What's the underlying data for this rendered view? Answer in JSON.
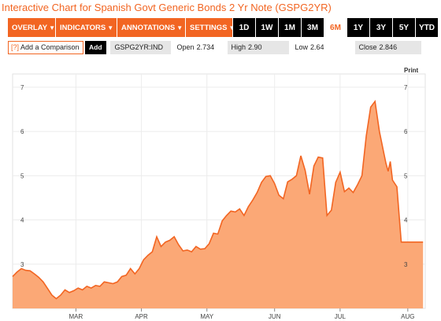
{
  "title": "Interactive Chart for Spanish Govt Generic Bonds 2 Yr Note (GSPG2YR)",
  "menus": [
    {
      "label": "OVERLAY",
      "icon": "caret-down-icon"
    },
    {
      "label": "INDICATORS",
      "icon": "caret-down-icon"
    },
    {
      "label": "ANNOTATIONS",
      "icon": "caret-down-icon"
    },
    {
      "label": "SETTINGS",
      "icon": "caret-down-icon"
    }
  ],
  "ranges": [
    "1D",
    "1W",
    "1M",
    "3M",
    "6M",
    "1Y",
    "3Y",
    "5Y",
    "YTD"
  ],
  "active_range": "6M",
  "compare": {
    "help": "[?]",
    "label": "Add a Comparison",
    "add_label": "Add"
  },
  "ticker": "GSPG2YR:IND",
  "stats": {
    "open_label": "Open",
    "open": "2.734",
    "high_label": "High",
    "high": "2.90",
    "low_label": "Low",
    "low": "2.64",
    "close_label": "Close",
    "close": "2.846"
  },
  "print_label": "Print",
  "colors": {
    "accent": "#f26522",
    "fill": "#fba876",
    "line": "#f26522"
  },
  "chart_data": {
    "type": "area",
    "ylim": [
      2,
      7.3
    ],
    "yticks": [
      3,
      4,
      5,
      6,
      7
    ],
    "ytick_labels": [
      "3",
      "4",
      "5",
      "6",
      "7"
    ],
    "xlim": [
      0,
      181
    ],
    "xticks": [
      {
        "label": "MAR",
        "x": 29
      },
      {
        "label": "APR",
        "x": 59
      },
      {
        "label": "MAY",
        "x": 89
      },
      {
        "label": "JUN",
        "x": 120
      },
      {
        "label": "JUL",
        "x": 150
      },
      {
        "label": "AUG",
        "x": 181
      }
    ],
    "series": [
      {
        "x": [
          0,
          2,
          4,
          6,
          8,
          10,
          12,
          14,
          16,
          18,
          20,
          22,
          24,
          26,
          28,
          30,
          32,
          34,
          36,
          38,
          40,
          42,
          44,
          46,
          48,
          50,
          52,
          54,
          56,
          58,
          60,
          62,
          64,
          66,
          68,
          70,
          72,
          74,
          76,
          78,
          80,
          82,
          84,
          86,
          88,
          90,
          92,
          94,
          96,
          98,
          100,
          102,
          104,
          106,
          108,
          110,
          112,
          114,
          116,
          118,
          120,
          122,
          124,
          126,
          128,
          130,
          132,
          134,
          136,
          138,
          140,
          142,
          144,
          146,
          148,
          150,
          152,
          154,
          156,
          158,
          160,
          162,
          164,
          166,
          168,
          170,
          171,
          172,
          173,
          174,
          176,
          178,
          180,
          182,
          184,
          186,
          188,
          189
        ],
        "y": [
          2.72,
          2.82,
          2.9,
          2.86,
          2.85,
          2.78,
          2.7,
          2.6,
          2.45,
          2.3,
          2.22,
          2.3,
          2.42,
          2.36,
          2.4,
          2.46,
          2.42,
          2.5,
          2.46,
          2.52,
          2.5,
          2.6,
          2.58,
          2.56,
          2.6,
          2.72,
          2.75,
          2.9,
          2.78,
          2.9,
          3.1,
          3.2,
          3.28,
          3.62,
          3.4,
          3.5,
          3.54,
          3.62,
          3.44,
          3.3,
          3.32,
          3.28,
          3.4,
          3.34,
          3.35,
          3.46,
          3.7,
          3.68,
          3.98,
          4.1,
          4.2,
          4.18,
          4.25,
          4.1,
          4.3,
          4.45,
          4.62,
          4.85,
          4.98,
          5.0,
          4.82,
          4.56,
          4.48,
          4.86,
          4.92,
          5.0,
          5.45,
          5.12,
          4.58,
          5.22,
          5.42,
          5.4,
          4.1,
          4.22,
          4.85,
          5.08,
          4.64,
          4.72,
          4.62,
          4.8,
          5.0,
          5.9,
          6.55,
          6.68,
          6.0,
          5.52,
          5.28,
          5.1,
          5.32,
          4.9,
          4.75,
          3.5,
          3.5,
          3.5,
          3.5,
          3.5,
          3.5,
          3.5
        ]
      }
    ]
  }
}
